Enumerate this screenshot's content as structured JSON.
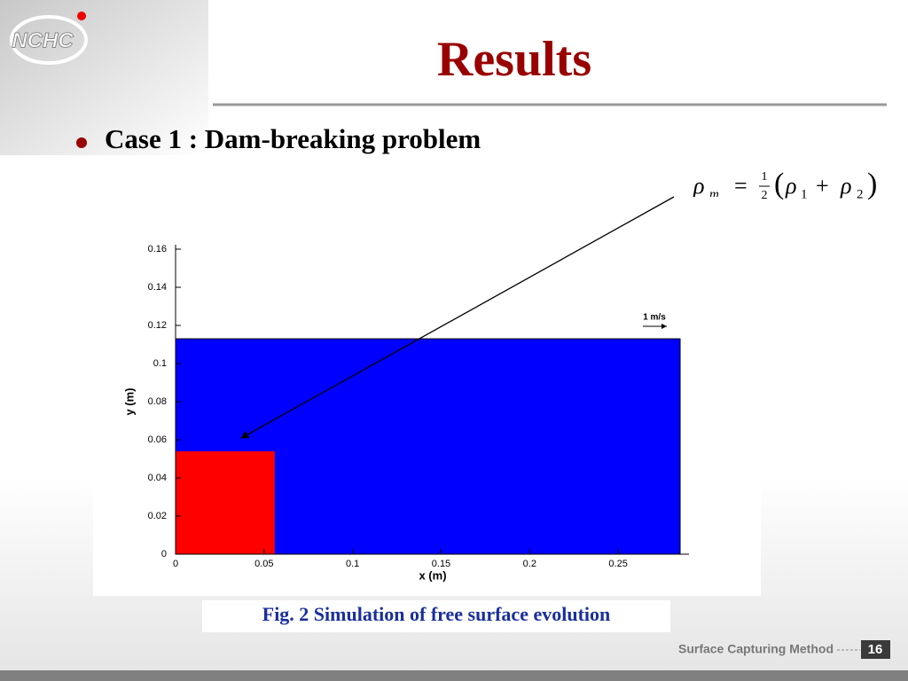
{
  "logo": "NCHC",
  "header": {
    "title": "Results"
  },
  "bullet": "Case 1 : Dam-breaking problem",
  "formula": {
    "symbol": "ρ",
    "sub_m": "m",
    "equals": "=",
    "num": "1",
    "den": "2",
    "open": "(",
    "sub1": "1",
    "plus": "+",
    "sub2": "2",
    "close": ")"
  },
  "chart_data": {
    "type": "rect",
    "xlabel": "x (m)",
    "ylabel": "y (m)",
    "xlim": [
      0,
      0.29
    ],
    "ylim": [
      0,
      0.16
    ],
    "xticks": [
      0,
      0.05,
      0.1,
      0.15,
      0.2,
      0.25
    ],
    "yticks": [
      0,
      0.02,
      0.04,
      0.06,
      0.08,
      0.1,
      0.12,
      0.14,
      0.16
    ],
    "rects": [
      {
        "x": [
          0,
          0.285
        ],
        "y": [
          0,
          0.113
        ],
        "color": "#0000ff"
      },
      {
        "x": [
          0,
          0.056
        ],
        "y": [
          0,
          0.054
        ],
        "color": "#ff0000"
      }
    ],
    "annotation": "1 m/s"
  },
  "caption": "Fig. 2  Simulation of free surface evolution",
  "footer": {
    "text": "Surface Capturing Method",
    "page": "16"
  }
}
